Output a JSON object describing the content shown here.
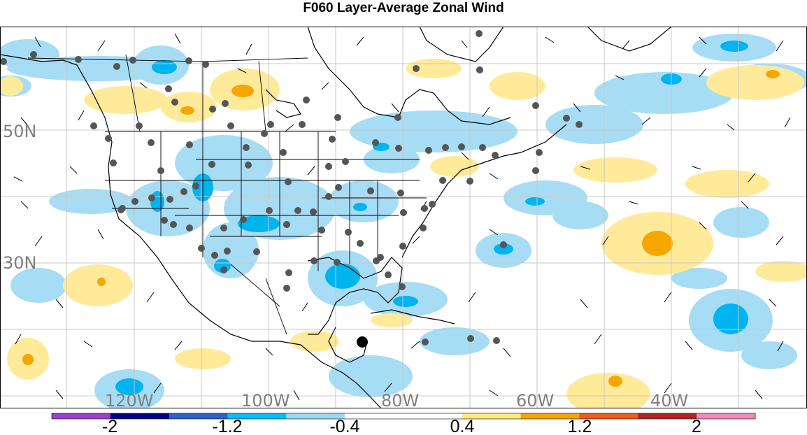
{
  "title": "F060 Layer-Average Zonal Wind",
  "lat_labels": [
    "50N",
    "30N"
  ],
  "lon_labels": [
    "120W",
    "100W",
    "80W",
    "60W",
    "40W"
  ],
  "colorbar": {
    "labels": [
      "-2",
      "-1.2",
      "-0.4",
      "0.4",
      "1.2",
      "2"
    ],
    "colors": [
      "#9B3FCF",
      "#00008B",
      "#3060C8",
      "#00BFFF",
      "#9ED8F5",
      "#FFFFFF",
      "#FFFFFF",
      "#FFEA80",
      "#F5A600",
      "#F05A1A",
      "#B22222",
      "#F08CB8"
    ]
  }
}
